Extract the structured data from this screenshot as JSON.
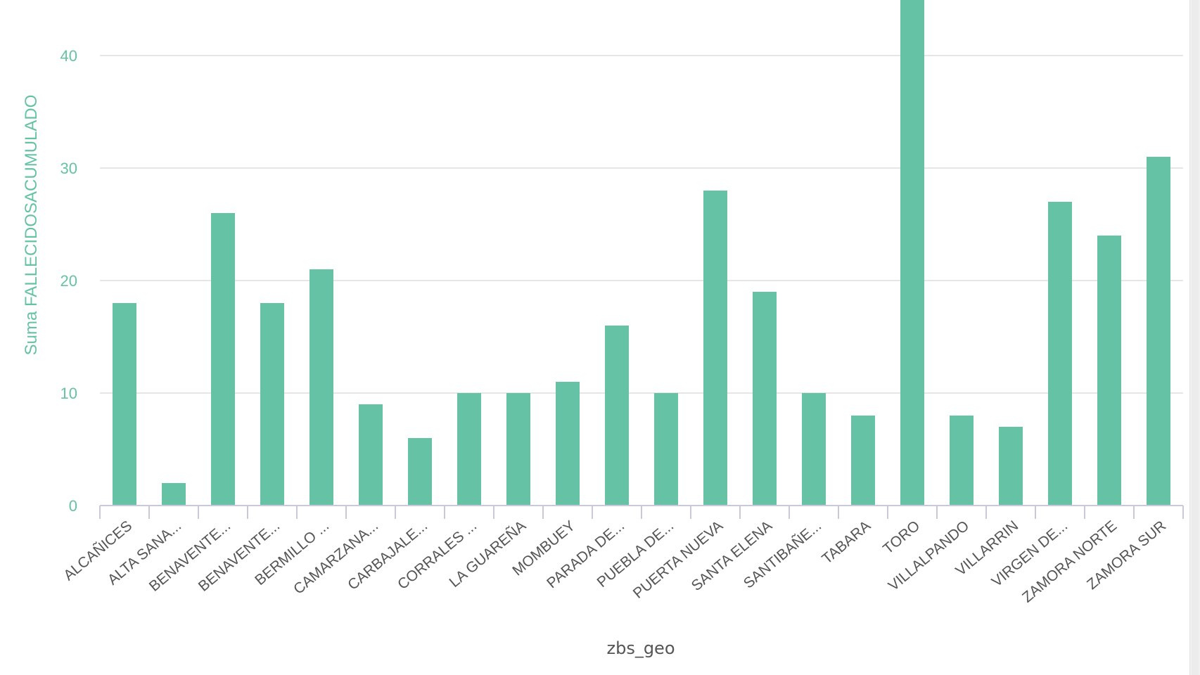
{
  "chart_data": {
    "type": "bar",
    "xlabel": "zbs_geo",
    "ylabel": "Suma FALLECIDOSACUMULADO",
    "ylim": [
      0,
      45
    ],
    "yticks": [
      0,
      10,
      20,
      30,
      40
    ],
    "grid": true,
    "colors": {
      "bar": "#66c2a5",
      "axis_text": "#66c2a5",
      "grid": "#e6e6e6",
      "tick_text": "#555555"
    },
    "categories": [
      "ALCAÑICES",
      "ALTA SANA...",
      "BENAVENTE...",
      "BENAVENTE...",
      "BERMILLO ...",
      "CAMARZANA...",
      "CARBAJALE...",
      "CORRALES ...",
      "LA GUAREÑA",
      "MOMBUEY",
      "PARADA DE...",
      "PUEBLA DE...",
      "PUERTA NUEVA",
      "SANTA ELENA",
      "SANTIBAÑE...",
      "TABARA",
      "TORO",
      "VILLALPANDO",
      "VILLARRIN",
      "VIRGEN DE...",
      "ZAMORA NORTE",
      "ZAMORA SUR"
    ],
    "values": [
      18,
      2,
      26,
      18,
      21,
      9,
      6,
      10,
      10,
      11,
      16,
      10,
      28,
      19,
      10,
      8,
      46,
      8,
      7,
      27,
      24,
      31
    ]
  }
}
